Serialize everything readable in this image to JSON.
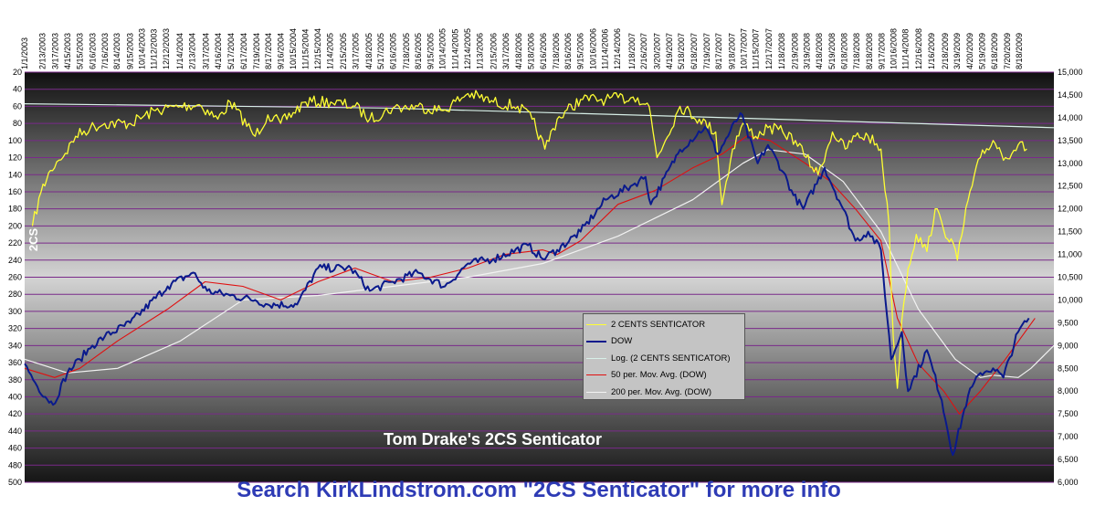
{
  "chart_data": {
    "type": "line",
    "title": "Tom Drake's 2CS Senticator",
    "footer": "Search KirkLindstrom.com \"2CS Senticator\" for more info",
    "ylabel": "2CS",
    "grid": true,
    "colors": {
      "plot_top": "#101010",
      "plot_mid": "#d4d4d4",
      "plot_bottom": "#151515",
      "gridline": "#7a2a8a",
      "senticator": "#ffff33",
      "dow": "#0a1a8c",
      "log_trend": "#d8f0e8",
      "ma50": "#e01010",
      "ma200": "#f2f2f2",
      "footer": "#2e3bb5"
    },
    "left_axis": {
      "label": "2CS",
      "reversed": true,
      "range": [
        20,
        500
      ],
      "ticks": [
        "20",
        "40",
        "60",
        "80",
        "100",
        "120",
        "140",
        "160",
        "180",
        "200",
        "220",
        "240",
        "260",
        "280",
        "300",
        "320",
        "340",
        "360",
        "380",
        "400",
        "420",
        "440",
        "460",
        "480",
        "500"
      ]
    },
    "right_axis": {
      "range": [
        6000,
        15000
      ],
      "ticks": [
        "6,000",
        "6,500",
        "7,000",
        "7,500",
        "8,000",
        "8,500",
        "9,000",
        "9,500",
        "10,000",
        "10,500",
        "11,000",
        "11,500",
        "12,000",
        "12,500",
        "13,000",
        "13,500",
        "14,000",
        "14,500",
        "15,000"
      ]
    },
    "x_axis": {
      "start": "1/1/2003",
      "end": "11/10/2009",
      "ticks": [
        "1/1/2003",
        "2/13/2003",
        "3/17/2003",
        "4/15/2003",
        "5/15/2003",
        "6/16/2003",
        "7/16/2003",
        "8/14/2003",
        "9/15/2003",
        "10/14/2003",
        "11/12/2003",
        "12/12/2003",
        "1/14/2004",
        "2/13/2004",
        "3/17/2004",
        "4/16/2004",
        "5/17/2004",
        "6/17/2004",
        "7/19/2004",
        "8/17/2004",
        "9/16/2004",
        "10/15/2004",
        "11/15/2004",
        "12/15/2004",
        "1/14/2005",
        "2/15/2005",
        "3/17/2005",
        "4/18/2005",
        "5/17/2005",
        "6/16/2005",
        "7/18/2005",
        "8/16/2005",
        "9/15/2005",
        "10/14/2005",
        "11/14/2005",
        "12/14/2005",
        "1/13/2006",
        "2/15/2006",
        "3/17/2006",
        "4/18/2006",
        "5/18/2006",
        "6/16/2006",
        "7/18/2006",
        "8/16/2006",
        "9/15/2006",
        "10/16/2006",
        "11/14/2006",
        "12/14/2006",
        "1/18/2007",
        "2/16/2007",
        "3/20/2007",
        "4/19/2007",
        "5/18/2007",
        "6/18/2007",
        "7/19/2007",
        "8/17/2007",
        "9/18/2007",
        "10/17/2007",
        "11/15/2007",
        "12/17/2007",
        "1/18/2008",
        "2/19/2008",
        "3/19/2008",
        "4/18/2008",
        "5/19/2008",
        "6/18/2008",
        "7/18/2008",
        "8/18/2008",
        "9/17/2008",
        "10/16/2008",
        "11/14/2008",
        "12/16/2008",
        "1/16/2009",
        "2/18/2009",
        "3/19/2009",
        "4/20/2009",
        "5/19/2009",
        "6/18/2009",
        "7/20/2009",
        "8/18/2009"
      ]
    },
    "series": [
      {
        "name": "2 CENTS SENTICATOR",
        "axis": "left",
        "x": [
          "2003-01-20",
          "2003-02-10",
          "2003-03-05",
          "2003-03-20",
          "2003-04-10",
          "2003-05-05",
          "2003-06-10",
          "2003-07-15",
          "2003-09-15",
          "2003-11-15",
          "2004-01-15",
          "2004-03-01",
          "2004-04-15",
          "2004-05-15",
          "2004-07-15",
          "2004-08-15",
          "2004-09-15",
          "2004-11-15",
          "2005-01-15",
          "2005-03-15",
          "2005-04-20",
          "2005-06-15",
          "2005-08-15",
          "2005-10-15",
          "2005-12-15",
          "2006-02-15",
          "2006-04-15",
          "2006-05-20",
          "2006-06-20",
          "2006-07-20",
          "2006-09-15",
          "2006-11-15",
          "2007-01-15",
          "2007-02-01",
          "2007-03-01",
          "2007-03-20",
          "2007-05-15",
          "2007-07-01",
          "2007-08-10",
          "2007-08-25",
          "2007-09-20",
          "2007-10-15",
          "2007-11-15",
          "2007-12-15",
          "2008-01-20",
          "2008-02-20",
          "2008-03-17",
          "2008-04-15",
          "2008-05-20",
          "2008-06-20",
          "2008-07-15",
          "2008-08-15",
          "2008-09-15",
          "2008-10-05",
          "2008-10-15",
          "2008-10-25",
          "2008-11-05",
          "2008-11-20",
          "2008-12-10",
          "2009-01-05",
          "2009-01-25",
          "2009-02-15",
          "2009-03-05",
          "2009-03-20",
          "2009-04-15",
          "2009-05-15",
          "2009-06-15",
          "2009-07-15",
          "2009-08-15",
          "2009-09-05"
        ],
        "y": [
          200,
          160,
          135,
          125,
          115,
          95,
          85,
          80,
          80,
          65,
          60,
          58,
          75,
          55,
          95,
          70,
          80,
          55,
          55,
          60,
          75,
          62,
          60,
          65,
          45,
          55,
          60,
          75,
          110,
          75,
          52,
          52,
          50,
          50,
          60,
          120,
          60,
          75,
          90,
          175,
          110,
          80,
          95,
          85,
          90,
          100,
          120,
          140,
          90,
          110,
          95,
          95,
          110,
          200,
          330,
          390,
          310,
          250,
          210,
          230,
          180,
          205,
          215,
          240,
          170,
          120,
          100,
          120,
          105,
          110
        ]
      },
      {
        "name": "DOW",
        "axis": "right",
        "x": [
          "2003-01-01",
          "2003-02-01",
          "2003-03-11",
          "2003-04-15",
          "2003-05-15",
          "2003-06-15",
          "2003-07-15",
          "2003-09-15",
          "2003-12-15",
          "2004-02-15",
          "2004-03-20",
          "2004-05-15",
          "2004-07-15",
          "2004-08-15",
          "2004-10-25",
          "2004-12-15",
          "2005-03-05",
          "2005-04-20",
          "2005-06-15",
          "2005-08-15",
          "2005-10-20",
          "2005-12-15",
          "2006-02-15",
          "2006-05-10",
          "2006-06-15",
          "2006-07-20",
          "2006-09-15",
          "2006-11-15",
          "2007-01-15",
          "2007-02-20",
          "2007-03-05",
          "2007-05-15",
          "2007-07-15",
          "2007-08-15",
          "2007-10-09",
          "2007-11-20",
          "2007-12-15",
          "2008-01-22",
          "2008-02-15",
          "2008-03-10",
          "2008-05-01",
          "2008-06-15",
          "2008-07-15",
          "2008-08-15",
          "2008-09-15",
          "2008-10-10",
          "2008-11-05",
          "2008-11-20",
          "2009-01-05",
          "2009-02-10",
          "2009-03-09",
          "2009-04-15",
          "2009-05-15",
          "2009-06-15",
          "2009-07-10",
          "2009-08-15",
          "2009-09-10"
        ],
        "y": [
          8600,
          8100,
          7700,
          8400,
          8700,
          9000,
          9200,
          9500,
          10300,
          10600,
          10200,
          10100,
          10000,
          9900,
          9900,
          10700,
          10700,
          10200,
          10400,
          10600,
          10300,
          10800,
          10900,
          11200,
          10900,
          11100,
          11500,
          12200,
          12500,
          12700,
          12100,
          13300,
          13800,
          13200,
          14100,
          13000,
          13400,
          12800,
          12300,
          12000,
          12900,
          12000,
          11300,
          11500,
          11100,
          8700,
          9300,
          8000,
          8900,
          7800,
          6600,
          7900,
          8400,
          8500,
          8300,
          9300,
          9600
        ]
      },
      {
        "name": "Log. (2 CENTS SENTICATOR)",
        "axis": "left",
        "x": [
          "2003-01-01",
          "2005-06-01",
          "2007-06-01",
          "2009-11-10"
        ],
        "y": [
          57,
          62,
          72,
          85
        ]
      },
      {
        "name": "50 per. Mov. Avg. (DOW)",
        "axis": "right",
        "x": [
          "2003-01-01",
          "2003-03-15",
          "2003-05-15",
          "2003-08-15",
          "2003-12-15",
          "2004-03-15",
          "2004-06-15",
          "2004-09-15",
          "2004-12-15",
          "2005-03-15",
          "2005-06-15",
          "2005-09-15",
          "2005-12-15",
          "2006-03-15",
          "2006-06-15",
          "2006-07-20",
          "2006-09-15",
          "2006-12-15",
          "2007-03-15",
          "2007-06-15",
          "2007-08-25",
          "2007-10-25",
          "2007-12-20",
          "2008-03-15",
          "2008-05-15",
          "2008-07-15",
          "2008-09-15",
          "2008-10-25",
          "2008-12-15",
          "2009-02-15",
          "2009-03-25",
          "2009-05-15",
          "2009-07-15",
          "2009-09-25"
        ],
        "y": [
          8500,
          8300,
          8500,
          9100,
          9800,
          10400,
          10300,
          10000,
          10400,
          10700,
          10400,
          10500,
          10700,
          11000,
          11100,
          11000,
          11300,
          12100,
          12400,
          12900,
          13200,
          13600,
          13500,
          13000,
          12600,
          12000,
          11300,
          9600,
          8600,
          8000,
          7500,
          8000,
          8700,
          9600
        ]
      },
      {
        "name": "200 per. Mov. Avg. (DOW)",
        "axis": "right",
        "x": [
          "2003-01-01",
          "2003-04-15",
          "2003-08-15",
          "2004-01-15",
          "2004-06-15",
          "2004-12-15",
          "2005-06-15",
          "2005-12-15",
          "2006-06-15",
          "2006-12-15",
          "2007-06-15",
          "2007-10-15",
          "2007-12-15",
          "2008-03-15",
          "2008-06-15",
          "2008-09-15",
          "2008-12-15",
          "2009-03-15",
          "2009-05-15",
          "2009-06-15",
          "2009-08-15",
          "2009-09-15",
          "2009-11-10"
        ],
        "y": [
          8700,
          8400,
          8500,
          9100,
          10000,
          10100,
          10300,
          10500,
          10800,
          11400,
          12200,
          13000,
          13300,
          13200,
          12600,
          11500,
          9800,
          8700,
          8300,
          8350,
          8300,
          8500,
          9000
        ]
      }
    ]
  }
}
